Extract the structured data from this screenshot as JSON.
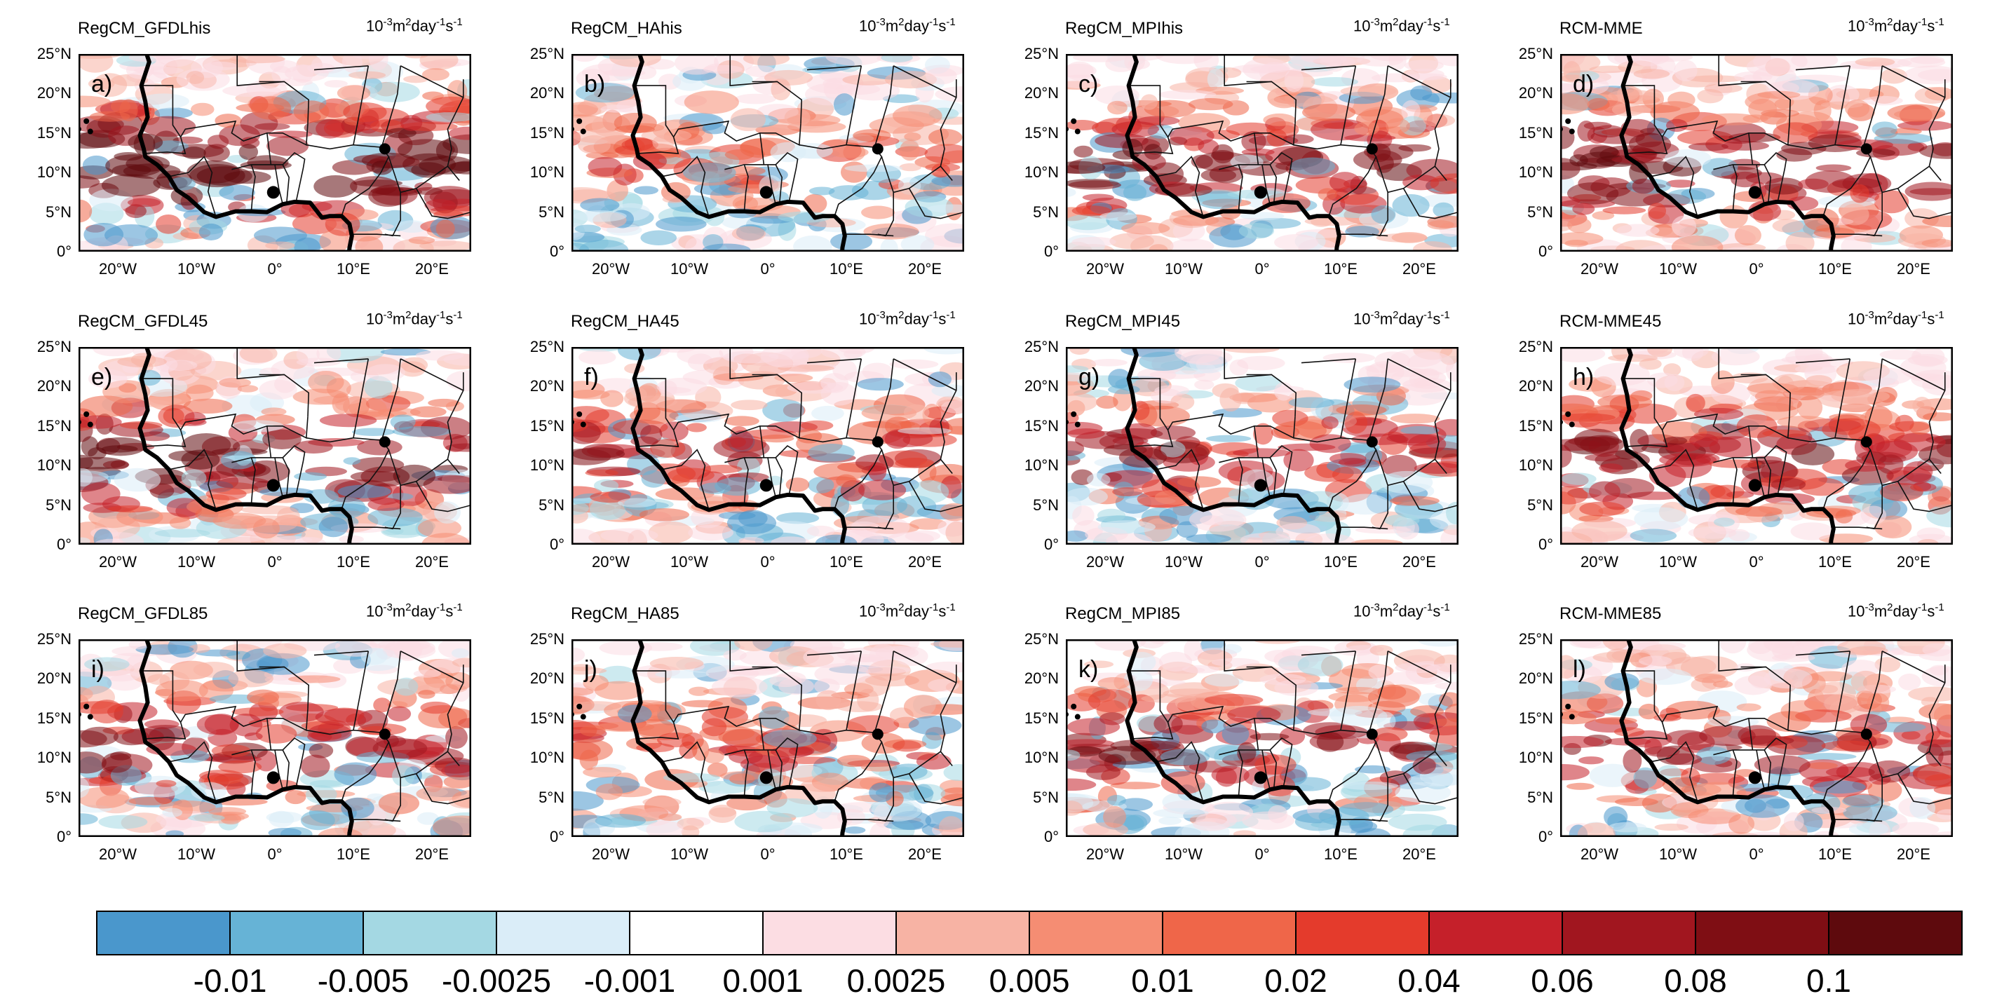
{
  "panel_unit": {
    "base": "10",
    "e1": "-3",
    "m": "m",
    "e2": "2",
    "day": "day",
    "e3": "-1",
    "s": "s",
    "e4": "-1"
  },
  "lat_ticks": [
    "25°N",
    "20°N",
    "15°N",
    "10°N",
    "5°N",
    "0°"
  ],
  "lon_ticks": [
    "20°W",
    "10°W",
    "0°",
    "10°E",
    "20°E"
  ],
  "panels": [
    {
      "title": "RegCM_GFDLhis",
      "letter": "a)",
      "intensity": 0.95,
      "blue": 0.15
    },
    {
      "title": "RegCM_HAhis",
      "letter": "b)",
      "intensity": 0.35,
      "blue": 0.35
    },
    {
      "title": "RegCM_MPIhis",
      "letter": "c)",
      "intensity": 0.7,
      "blue": 0.25
    },
    {
      "title": "RCM-MME",
      "letter": "d)",
      "intensity": 0.75,
      "blue": 0.08
    },
    {
      "title": "RegCM_GFDL45",
      "letter": "e)",
      "intensity": 0.8,
      "blue": 0.22
    },
    {
      "title": "RegCM_HA45",
      "letter": "f)",
      "intensity": 0.55,
      "blue": 0.3
    },
    {
      "title": "RegCM_MPI45",
      "letter": "g)",
      "intensity": 0.6,
      "blue": 0.35
    },
    {
      "title": "RCM-MME45",
      "letter": "h)",
      "intensity": 0.7,
      "blue": 0.12
    },
    {
      "title": "RegCM_GFDL85",
      "letter": "i)",
      "intensity": 0.65,
      "blue": 0.3
    },
    {
      "title": "RegCM_HA85",
      "letter": "j)",
      "intensity": 0.45,
      "blue": 0.3
    },
    {
      "title": "RegCM_MPI85",
      "letter": "k)",
      "intensity": 0.65,
      "blue": 0.38
    },
    {
      "title": "RCM-MME85",
      "letter": "l)",
      "intensity": 0.6,
      "blue": 0.2
    }
  ],
  "colorbar": {
    "colors": [
      "#4a97cc",
      "#66b3d6",
      "#a4d8e3",
      "#daedf8",
      "#ffffff",
      "#fcdde3",
      "#f7b3a4",
      "#f58d73",
      "#ef6649",
      "#e43b2c",
      "#c5202a",
      "#a1161f",
      "#7f0e14",
      "#5e0a0d"
    ],
    "labels": [
      "-0.01",
      "-0.005",
      "-0.0025",
      "-0.001",
      "0.001",
      "0.0025",
      "0.005",
      "0.01",
      "0.02",
      "0.04",
      "0.06",
      "0.08",
      "0.1"
    ]
  }
}
